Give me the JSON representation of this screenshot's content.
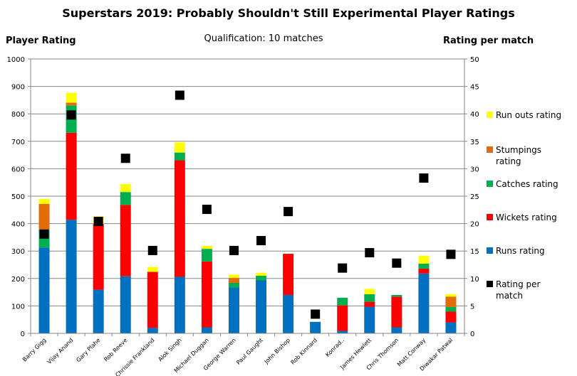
{
  "chart_data": {
    "type": "bar",
    "stacked": true,
    "title": "Superstars 2019: Probably Shouldn't Still Experimental Player Ratings",
    "subtitle": "Qualification: 10 matches",
    "ylabel": "Player Rating",
    "y2label": "Rating per match",
    "ylim": [
      0,
      1000
    ],
    "yticks": [
      0,
      100,
      200,
      300,
      400,
      500,
      600,
      700,
      800,
      900,
      1000
    ],
    "y2lim": [
      0,
      50
    ],
    "y2ticks": [
      0,
      5,
      10,
      15,
      20,
      25,
      30,
      35,
      40,
      45,
      50
    ],
    "grid": true,
    "legend_position": "right",
    "categories": [
      "Barry Gigg",
      "Vijay Anand",
      "Gary Plahe",
      "Rob Reeve",
      "Chrissie Frankland",
      "Alok Singh",
      "Michael Duggan",
      "George Warren",
      "Paul Gaught",
      "John Bishop",
      "Rob Kinnard",
      "Konrad..",
      "James Hewlett",
      "Chris Thomson",
      "Matt Conway",
      "Diwakar Patwal"
    ],
    "series": [
      {
        "name": "Runs rating",
        "color": "#0070C0",
        "values": [
          313,
          414,
          159,
          208,
          20,
          206,
          22,
          167,
          193,
          140,
          42,
          9,
          97,
          22,
          218,
          40
        ]
      },
      {
        "name": "Wickets rating",
        "color": "#FF0000",
        "values": [
          0,
          317,
          240,
          260,
          204,
          425,
          240,
          0,
          0,
          150,
          0,
          93,
          18,
          112,
          18,
          39
        ]
      },
      {
        "name": "Catches rating",
        "color": "#00B050",
        "values": [
          66,
          100,
          0,
          47,
          0,
          28,
          46,
          17,
          17,
          0,
          0,
          28,
          28,
          6,
          18,
          17
        ]
      },
      {
        "name": "Stumpings rating",
        "color": "#E36C09",
        "values": [
          93,
          10,
          0,
          0,
          0,
          0,
          0,
          18,
          0,
          0,
          0,
          0,
          0,
          0,
          0,
          38
        ]
      },
      {
        "name": "Run outs rating",
        "color": "#FFFF00",
        "values": [
          18,
          36,
          28,
          29,
          18,
          37,
          11,
          12,
          11,
          0,
          0,
          0,
          19,
          0,
          29,
          9
        ]
      }
    ],
    "line_series": {
      "name": "Rating per match",
      "color": "#000000",
      "axis": "right",
      "marker": "square",
      "values": [
        18.1,
        39.8,
        20.4,
        31.9,
        15.1,
        43.4,
        22.6,
        15.1,
        16.9,
        22.2,
        3.5,
        11.9,
        14.7,
        12.8,
        28.3,
        14.4
      ]
    },
    "legend": [
      {
        "label": "Run outs rating",
        "color": "#FFFF00"
      },
      {
        "label": "Stumpings rating",
        "color": "#E36C09"
      },
      {
        "label": "Catches rating",
        "color": "#00B050"
      },
      {
        "label": "Wickets rating",
        "color": "#FF0000"
      },
      {
        "label": "Runs rating",
        "color": "#0070C0"
      },
      {
        "label": "Rating per match",
        "color": "#000000"
      }
    ]
  }
}
